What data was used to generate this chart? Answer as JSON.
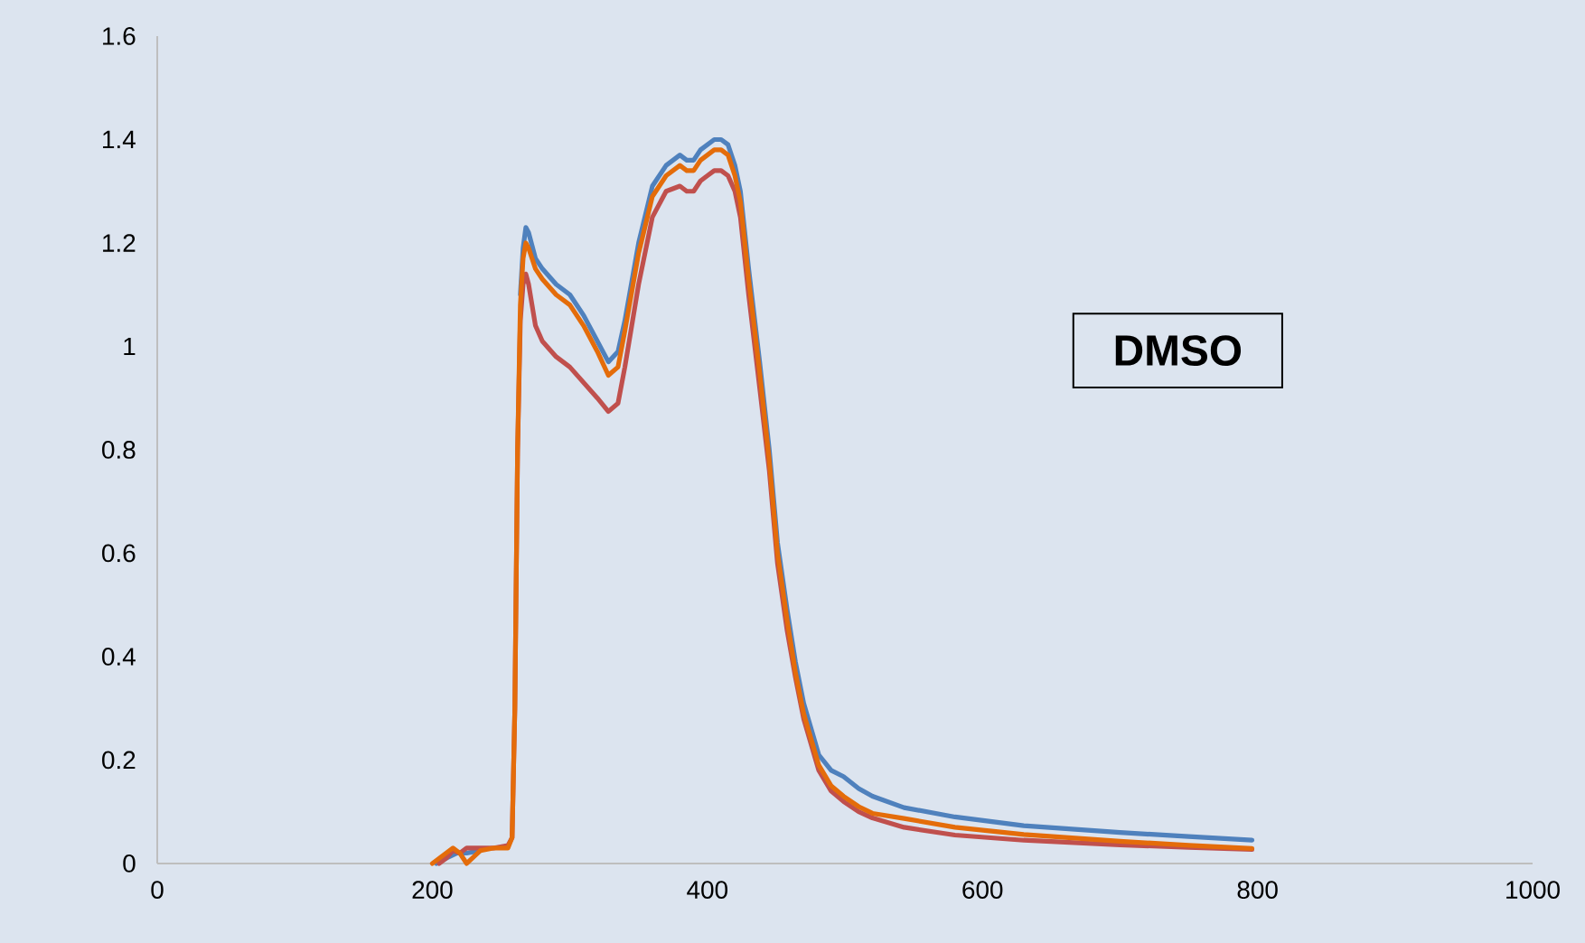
{
  "chart_data": {
    "type": "line",
    "xlim": [
      0,
      1000
    ],
    "ylim": [
      0,
      1.6
    ],
    "xticks": [
      0,
      200,
      400,
      600,
      800,
      1000
    ],
    "yticks": [
      0,
      0.2,
      0.4,
      0.6,
      0.8,
      1,
      1.2,
      1.4,
      1.6
    ],
    "marker": "none",
    "line_style": "solid",
    "annotations": [
      "**DMSO**"
    ],
    "series": [
      {
        "color": "#4f81bd",
        "x": [
          203,
          210,
          218,
          225,
          235,
          245,
          255,
          258,
          260,
          262,
          264,
          266,
          268,
          270,
          275,
          280,
          290,
          300,
          310,
          320,
          328,
          335,
          340,
          350,
          360,
          370,
          380,
          385,
          390,
          395,
          400,
          405,
          410,
          415,
          420,
          424,
          430,
          438,
          445,
          451,
          458,
          464,
          470,
          481,
          490,
          499,
          510,
          520,
          543,
          580,
          630,
          700,
          750,
          796
        ],
        "values": [
          0,
          0.01,
          0.02,
          0.02,
          0.025,
          null,
          null,
          null,
          null,
          null,
          1.1,
          1.19,
          1.23,
          1.22,
          1.17,
          1.15,
          1.12,
          1.1,
          1.06,
          1.01,
          0.97,
          0.99,
          1.05,
          1.2,
          1.31,
          1.35,
          1.37,
          1.36,
          1.36,
          1.38,
          1.39,
          1.4,
          1.4,
          1.39,
          1.35,
          1.3,
          1.15,
          0.97,
          0.8,
          0.62,
          0.49,
          0.39,
          0.31,
          0.21,
          0.18,
          0.168,
          0.145,
          0.13,
          0.108,
          0.09,
          0.073,
          0.06,
          0.052,
          0.045
        ]
      },
      {
        "color": "#c0504d",
        "x": [
          205,
          210,
          215,
          220,
          225,
          235,
          245,
          255,
          258,
          260,
          262,
          264,
          266,
          268,
          270,
          275,
          280,
          290,
          300,
          310,
          320,
          328,
          335,
          340,
          350,
          360,
          370,
          380,
          385,
          390,
          395,
          400,
          405,
          410,
          415,
          420,
          424,
          430,
          438,
          445,
          451,
          458,
          464,
          470,
          481,
          490,
          499,
          510,
          520,
          543,
          580,
          630,
          700,
          750,
          796
        ],
        "values": [
          0,
          0.01,
          0.025,
          0.02,
          0.03,
          0.03,
          0.03,
          0.035,
          0.05,
          0.3,
          0.8,
          1.05,
          1.12,
          1.14,
          1.12,
          1.04,
          1.01,
          0.98,
          0.96,
          0.93,
          0.9,
          0.874,
          0.89,
          0.96,
          1.12,
          1.25,
          1.3,
          1.31,
          1.3,
          1.3,
          1.32,
          1.33,
          1.34,
          1.34,
          1.33,
          1.3,
          1.25,
          1.1,
          0.92,
          0.76,
          0.58,
          0.45,
          0.36,
          0.28,
          0.18,
          0.14,
          0.12,
          0.1,
          0.088,
          0.07,
          0.055,
          0.045,
          0.036,
          0.031,
          0.027
        ]
      },
      {
        "color": "#e46c0a",
        "x": [
          200,
          205,
          210,
          215,
          220,
          225,
          235,
          245,
          255,
          258,
          260,
          262,
          264,
          266,
          268,
          270,
          275,
          280,
          290,
          300,
          310,
          320,
          328,
          335,
          340,
          350,
          360,
          370,
          380,
          385,
          390,
          395,
          400,
          405,
          410,
          415,
          420,
          424,
          430,
          438,
          445,
          451,
          458,
          464,
          470,
          481,
          490,
          499,
          510,
          520,
          543,
          580,
          630,
          700,
          750,
          796
        ],
        "values": [
          0,
          0.01,
          0.02,
          0.03,
          0.02,
          0.0,
          0.025,
          0.03,
          0.03,
          0.05,
          0.3,
          0.8,
          1.08,
          1.17,
          1.2,
          1.19,
          1.15,
          1.13,
          1.1,
          1.08,
          1.04,
          0.99,
          0.944,
          0.96,
          1.03,
          1.18,
          1.29,
          1.33,
          1.35,
          1.34,
          1.34,
          1.36,
          1.37,
          1.38,
          1.38,
          1.37,
          1.33,
          1.28,
          1.13,
          0.95,
          0.78,
          0.6,
          0.47,
          0.37,
          0.29,
          0.19,
          0.15,
          0.13,
          0.11,
          0.097,
          0.087,
          0.07,
          0.056,
          0.043,
          0.035,
          0.029
        ]
      }
    ]
  }
}
